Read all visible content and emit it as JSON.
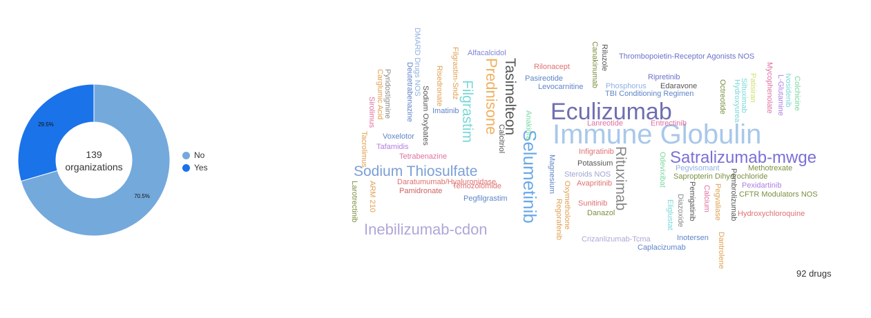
{
  "chart_data": [
    {
      "type": "pie",
      "variant": "donut",
      "center_label": [
        "139",
        "organizations"
      ],
      "legend_placement": "right",
      "slices": [
        {
          "name": "No",
          "value": 70.5,
          "label": "70.5%",
          "color": "#74a9dc"
        },
        {
          "name": "Yes",
          "value": 29.5,
          "label": "29.5%",
          "color": "#1a73e8"
        }
      ]
    },
    {
      "type": "word-cloud",
      "footnote": "92 drugs",
      "words": [
        {
          "text": "Immune Globulin",
          "color": "#a8c8ea"
        },
        {
          "text": "Eculizumab",
          "color": "#6f6fb0"
        },
        {
          "text": "Selumetinib",
          "color": "#6aa9e8"
        },
        {
          "text": "Satralizumab-mwge",
          "color": "#7b6fd6"
        },
        {
          "text": "Sodium Thiosulfate",
          "color": "#7b9fd6"
        },
        {
          "text": "Inebilizumab-cdon",
          "color": "#b0a6d8"
        },
        {
          "text": "Prednisone",
          "color": "#f0b060"
        },
        {
          "text": "Filgrastim",
          "color": "#7ad8d8"
        },
        {
          "text": "Tasimelteon",
          "color": "#555555"
        },
        {
          "text": "Rituximab",
          "color": "#888888"
        },
        {
          "text": "Alfacalcidol",
          "color": "#7e84d6"
        },
        {
          "text": "Rilonacept",
          "color": "#e07070"
        },
        {
          "text": "Pasireotide",
          "color": "#5f84c8"
        },
        {
          "text": "Levocarnitine",
          "color": "#5f84c8"
        },
        {
          "text": "Thrombopoietin-Receptor Agonists NOS",
          "color": "#6a72c8"
        },
        {
          "text": "Ripretinib",
          "color": "#6a72c8"
        },
        {
          "text": "Edaravone",
          "color": "#555555"
        },
        {
          "text": "Phosphorus",
          "color": "#8fb0e0"
        },
        {
          "text": "TBI Conditioning Regimen",
          "color": "#5f84c8"
        },
        {
          "text": "Lanreotide",
          "color": "#e070a0"
        },
        {
          "text": "Entrectinib",
          "color": "#e070a0"
        },
        {
          "text": "Infigratinib",
          "color": "#e07070"
        },
        {
          "text": "Potassium",
          "color": "#555555"
        },
        {
          "text": "Steroids NOS",
          "color": "#9ea6d0"
        },
        {
          "text": "Avapritinib",
          "color": "#e07070"
        },
        {
          "text": "Sunitinib",
          "color": "#e07070"
        },
        {
          "text": "Danazol",
          "color": "#7a9040"
        },
        {
          "text": "Crizanlizumab-Tcma",
          "color": "#b0a6d8"
        },
        {
          "text": "Caplacizumab",
          "color": "#5f84c8"
        },
        {
          "text": "Inotersen",
          "color": "#5f84c8"
        },
        {
          "text": "Pegvisomant",
          "color": "#8fb0e0"
        },
        {
          "text": "Methotrexate",
          "color": "#7a9040"
        },
        {
          "text": "Sapropterin Dihydrochloride",
          "color": "#7a9040"
        },
        {
          "text": "Pexidartinib",
          "color": "#b080e0"
        },
        {
          "text": "CFTR Modulators NOS",
          "color": "#7a9040"
        },
        {
          "text": "Hydroxychloroquine",
          "color": "#e07070"
        },
        {
          "text": "Voxelotor",
          "color": "#5f84c8"
        },
        {
          "text": "Tafamidis",
          "color": "#b080e0"
        },
        {
          "text": "Tetrabenazine",
          "color": "#e070a0"
        },
        {
          "text": "Daratumumab/Hyaluronidase",
          "color": "#e07070"
        },
        {
          "text": "Pamidronate",
          "color": "#d06060"
        },
        {
          "text": "Temozolomide",
          "color": "#e07070"
        },
        {
          "text": "Pegfilgrastim",
          "color": "#5f84c8"
        },
        {
          "text": "Imatinib",
          "color": "#5f84c8"
        },
        {
          "text": "Larotrectinib",
          "color": "#7a9040"
        },
        {
          "text": "ARM 210",
          "color": "#e0a050"
        },
        {
          "text": "Tacrolimus",
          "color": "#e0a050"
        },
        {
          "text": "Sirolimus",
          "color": "#e070a0"
        },
        {
          "text": "Carglumic Acid",
          "color": "#e0a050"
        },
        {
          "text": "Pyridostigmine",
          "color": "#888888"
        },
        {
          "text": "Deutetrabenazine",
          "color": "#5f84c8"
        },
        {
          "text": "DMARD Drugs NOS",
          "color": "#8fb0e0"
        },
        {
          "text": "Sodium Oxybates",
          "color": "#555555"
        },
        {
          "text": "Risedronate",
          "color": "#e0a050"
        },
        {
          "text": "Filgrastim-Sndz",
          "color": "#e0a050"
        },
        {
          "text": "Calcitriol",
          "color": "#555555"
        },
        {
          "text": "Anakinra",
          "color": "#7ad8a0"
        },
        {
          "text": "Magnesium",
          "color": "#5f84c8"
        },
        {
          "text": "Oxymetholone",
          "color": "#e0a050"
        },
        {
          "text": "Regorafenib",
          "color": "#e0a050"
        },
        {
          "text": "Canakinumab",
          "color": "#7a9040"
        },
        {
          "text": "Riluzole",
          "color": "#555555"
        },
        {
          "text": "Odevixibat",
          "color": "#7ad8a0"
        },
        {
          "text": "Eliglustat",
          "color": "#7ad8d8"
        },
        {
          "text": "Diazoxide",
          "color": "#888888"
        },
        {
          "text": "Pemigatinib",
          "color": "#555555"
        },
        {
          "text": "Calcium",
          "color": "#e070a0"
        },
        {
          "text": "Pegvaliase",
          "color": "#e0a050"
        },
        {
          "text": "Pembrolizumab",
          "color": "#555555"
        },
        {
          "text": "Dantrolene",
          "color": "#e0a050"
        },
        {
          "text": "Octreotide",
          "color": "#7a9040"
        },
        {
          "text": "Hydroxyurea",
          "color": "#7ad8d8"
        },
        {
          "text": "Siltuximab",
          "color": "#7ad8d8"
        },
        {
          "text": "Patisiran",
          "color": "#d0e070"
        },
        {
          "text": "Mycophenolate",
          "color": "#e070a0"
        },
        {
          "text": "L-Glutamine",
          "color": "#b080e0"
        },
        {
          "text": "Ivosidenib",
          "color": "#7ad8d8"
        },
        {
          "text": "Colchicine",
          "color": "#7ad8a0"
        }
      ]
    }
  ]
}
